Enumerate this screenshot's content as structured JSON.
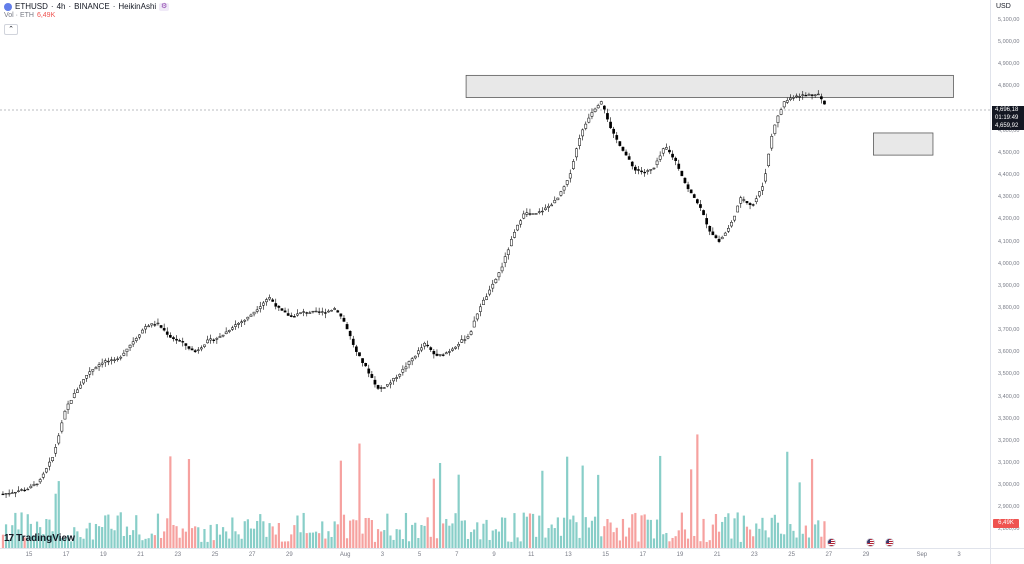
{
  "legend": {
    "symbol": "ETHUSD",
    "timeframe": "4h",
    "exchange": "BINANCE",
    "chart_style": "HeikinAshi",
    "separator": "·",
    "volume_label": "Vol · ETH",
    "volume_value": "6,49K"
  },
  "collapse_glyph": "⌃",
  "currency": "USD",
  "price_box": {
    "lines": [
      "4,696,18",
      "01:19:49",
      "4,659,92"
    ]
  },
  "volume_badge": "6,49K",
  "brand": {
    "mark": "17",
    "name": "TradingView"
  },
  "colors": {
    "up_volume": "#26a69a",
    "down_volume": "#ef5350",
    "candle_up": "#ffffff",
    "candle_down": "#000000",
    "zone_fill": "#e8e8e8"
  },
  "chart_data": {
    "type": "candlestick",
    "style": "HeikinAshi",
    "y_axis": {
      "ylim": [
        2750,
        5150
      ],
      "ticks": [
        {
          "value": 5100,
          "label": "5,100,00"
        },
        {
          "value": 5000,
          "label": "5,000,00"
        },
        {
          "value": 4900,
          "label": "4,900,00"
        },
        {
          "value": 4800,
          "label": "4,800,00"
        },
        {
          "value": 4700,
          "label": "4,700,00"
        },
        {
          "value": 4600,
          "label": "4,600,00"
        },
        {
          "value": 4500,
          "label": "4,500,00"
        },
        {
          "value": 4400,
          "label": "4,400,00"
        },
        {
          "value": 4300,
          "label": "4,300,00"
        },
        {
          "value": 4200,
          "label": "4,200,00"
        },
        {
          "value": 4100,
          "label": "4,100,00"
        },
        {
          "value": 4000,
          "label": "4,000,00"
        },
        {
          "value": 3900,
          "label": "3,900,00"
        },
        {
          "value": 3800,
          "label": "3,800,00"
        },
        {
          "value": 3700,
          "label": "3,700,00"
        },
        {
          "value": 3600,
          "label": "3,600,00"
        },
        {
          "value": 3500,
          "label": "3,500,00"
        },
        {
          "value": 3400,
          "label": "3,400,00"
        },
        {
          "value": 3300,
          "label": "3,300,00"
        },
        {
          "value": 3200,
          "label": "3,200,00"
        },
        {
          "value": 3100,
          "label": "3,100,00"
        },
        {
          "value": 3000,
          "label": "3,000,00"
        },
        {
          "value": 2900,
          "label": "2,900,00"
        },
        {
          "value": 2800,
          "label": "2,800,00"
        }
      ]
    },
    "x_axis": {
      "ticks": [
        {
          "day": 15,
          "label": "15"
        },
        {
          "day": 17,
          "label": "17"
        },
        {
          "day": 19,
          "label": "19"
        },
        {
          "day": 21,
          "label": "21"
        },
        {
          "day": 23,
          "label": "23"
        },
        {
          "day": 25,
          "label": "25"
        },
        {
          "day": 27,
          "label": "27"
        },
        {
          "day": 29,
          "label": "29"
        },
        {
          "day": 32,
          "label": "Aug"
        },
        {
          "day": 34,
          "label": "3"
        },
        {
          "day": 36,
          "label": "5"
        },
        {
          "day": 38,
          "label": "7"
        },
        {
          "day": 40,
          "label": "9"
        },
        {
          "day": 42,
          "label": "11"
        },
        {
          "day": 44,
          "label": "13"
        },
        {
          "day": 46,
          "label": "15"
        },
        {
          "day": 48,
          "label": "17"
        },
        {
          "day": 50,
          "label": "19"
        },
        {
          "day": 52,
          "label": "21"
        },
        {
          "day": 54,
          "label": "23"
        },
        {
          "day": 56,
          "label": "25"
        },
        {
          "day": 58,
          "label": "27"
        },
        {
          "day": 60,
          "label": "29"
        },
        {
          "day": 63,
          "label": "Sep"
        },
        {
          "day": 65,
          "label": "3"
        }
      ]
    },
    "price_path": [
      [
        13.6,
        2960
      ],
      [
        15.0,
        2985
      ],
      [
        15.6,
        3020
      ],
      [
        16.3,
        3130
      ],
      [
        17.0,
        3350
      ],
      [
        17.5,
        3420
      ],
      [
        18.2,
        3510
      ],
      [
        19.0,
        3560
      ],
      [
        19.7,
        3560
      ],
      [
        20.5,
        3640
      ],
      [
        21.3,
        3720
      ],
      [
        21.9,
        3730
      ],
      [
        22.6,
        3670
      ],
      [
        23.3,
        3640
      ],
      [
        23.9,
        3600
      ],
      [
        24.6,
        3650
      ],
      [
        25.3,
        3670
      ],
      [
        26.0,
        3720
      ],
      [
        26.7,
        3750
      ],
      [
        27.3,
        3800
      ],
      [
        27.9,
        3850
      ],
      [
        28.5,
        3790
      ],
      [
        29.1,
        3760
      ],
      [
        29.7,
        3780
      ],
      [
        30.3,
        3780
      ],
      [
        30.9,
        3780
      ],
      [
        31.5,
        3800
      ],
      [
        32.0,
        3730
      ],
      [
        32.6,
        3600
      ],
      [
        33.2,
        3520
      ],
      [
        33.8,
        3430
      ],
      [
        34.4,
        3460
      ],
      [
        35.0,
        3510
      ],
      [
        35.6,
        3570
      ],
      [
        36.3,
        3640
      ],
      [
        36.9,
        3580
      ],
      [
        37.5,
        3600
      ],
      [
        38.1,
        3640
      ],
      [
        38.7,
        3680
      ],
      [
        39.2,
        3800
      ],
      [
        39.8,
        3880
      ],
      [
        40.4,
        3980
      ],
      [
        41.0,
        4120
      ],
      [
        41.6,
        4230
      ],
      [
        42.2,
        4220
      ],
      [
        42.8,
        4250
      ],
      [
        43.4,
        4290
      ],
      [
        44.0,
        4380
      ],
      [
        44.6,
        4570
      ],
      [
        45.2,
        4680
      ],
      [
        45.8,
        4740
      ],
      [
        46.3,
        4600
      ],
      [
        46.9,
        4520
      ],
      [
        47.5,
        4430
      ],
      [
        48.1,
        4410
      ],
      [
        48.6,
        4430
      ],
      [
        49.2,
        4530
      ],
      [
        49.8,
        4460
      ],
      [
        50.4,
        4340
      ],
      [
        51.0,
        4270
      ],
      [
        51.6,
        4150
      ],
      [
        52.1,
        4100
      ],
      [
        52.7,
        4170
      ],
      [
        53.3,
        4300
      ],
      [
        53.9,
        4260
      ],
      [
        54.5,
        4360
      ],
      [
        55.0,
        4610
      ],
      [
        55.6,
        4730
      ],
      [
        56.2,
        4760
      ],
      [
        56.8,
        4760
      ],
      [
        57.4,
        4770
      ],
      [
        57.9,
        4700
      ]
    ],
    "volume": {
      "up_color": "#26a69a",
      "down_color": "#ef5350"
    },
    "zones": [
      {
        "from_day": 38.5,
        "to_day": 64.7,
        "high": 4850,
        "low": 4750
      },
      {
        "from_day": 60.4,
        "to_day": 63.6,
        "high": 4590,
        "low": 4490
      }
    ],
    "current_price": 4659.92,
    "annotations": [
      "US economic event",
      "US economic event",
      "US economic event"
    ]
  }
}
